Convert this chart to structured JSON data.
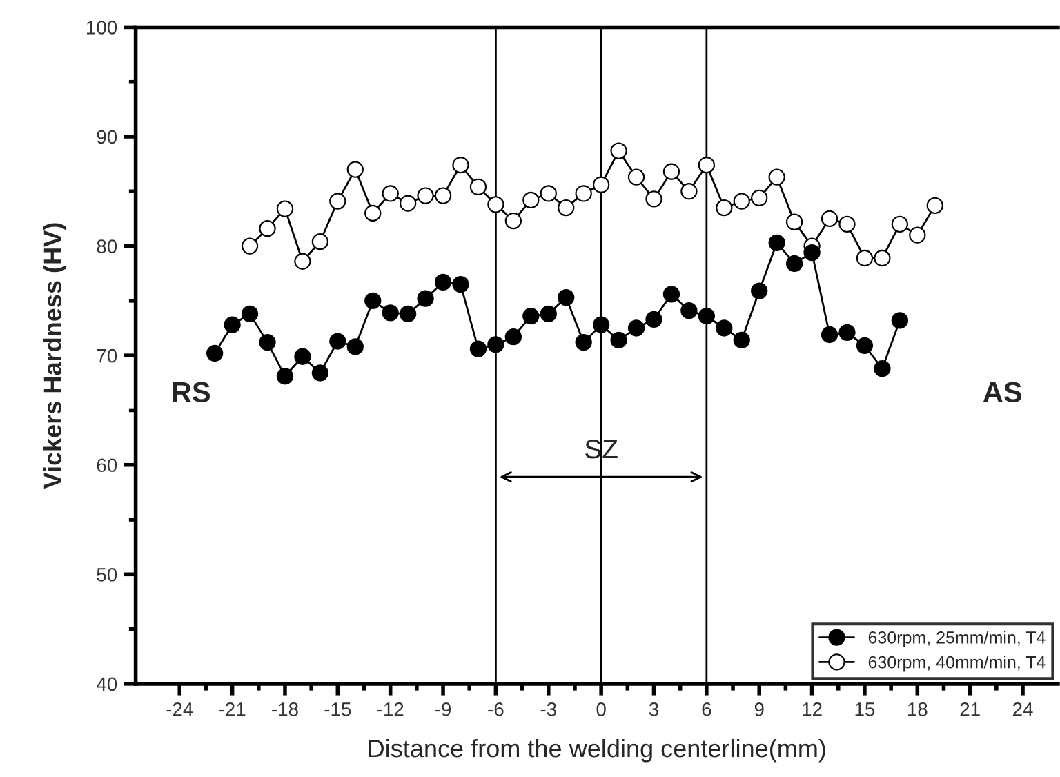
{
  "chart_data": {
    "type": "line",
    "xlabel": "Distance from the welding centerline(mm)",
    "ylabel": "Vickers Hardness (HV)",
    "xlim": [
      -26.5,
      26
    ],
    "ylim": [
      40,
      100
    ],
    "xticks": [
      -24,
      {
        "value": -22.5,
        "label": null
      },
      -21,
      {
        "value": -19.5,
        "label": null
      },
      -18,
      {
        "value": -16.5,
        "label": null
      },
      -15,
      {
        "value": -13.5,
        "label": null
      },
      -12,
      {
        "value": -10.5,
        "label": null
      },
      -9,
      {
        "value": -7.5,
        "label": null
      },
      -6,
      {
        "value": -4.5,
        "label": null
      },
      -3,
      {
        "value": -1.5,
        "label": null
      },
      0,
      {
        "value": 1.5,
        "label": null
      },
      3,
      {
        "value": 4.5,
        "label": null
      },
      6,
      {
        "value": 7.5,
        "label": null
      },
      9,
      {
        "value": 10.5,
        "label": null
      },
      12,
      {
        "value": 13.5,
        "label": null
      },
      15,
      {
        "value": 16.5,
        "label": null
      },
      18,
      {
        "value": 19.5,
        "label": null
      },
      21,
      {
        "value": 22.5,
        "label": null
      },
      24
    ],
    "yticks": [
      40,
      {
        "value": 45,
        "label": null
      },
      50,
      {
        "value": 55,
        "label": null
      },
      60,
      {
        "value": 65,
        "label": null
      },
      70,
      {
        "value": 75,
        "label": null
      },
      80,
      {
        "value": 85,
        "label": null
      },
      90,
      {
        "value": 95,
        "label": null
      },
      100
    ],
    "grid": false,
    "legend": "bottom right",
    "series": [
      {
        "name": "630rpm, 25mm/min, T4",
        "color": "#000000",
        "marker": "circle",
        "x": [
          -22,
          -21,
          -20,
          -19,
          -18,
          -17,
          -16,
          -15,
          -14,
          -13,
          -12,
          -11,
          -10,
          -9,
          -8,
          -7,
          -6,
          -5,
          -4,
          -3,
          -2,
          -1,
          0,
          1,
          2,
          3,
          4,
          5,
          6,
          7,
          8,
          9,
          10,
          11,
          12,
          13,
          14,
          15,
          16,
          17
        ],
        "values": [
          70.2,
          72.8,
          73.8,
          71.2,
          68.1,
          69.9,
          68.4,
          71.3,
          70.8,
          75.0,
          73.9,
          73.8,
          75.2,
          76.7,
          76.5,
          70.6,
          71.0,
          71.7,
          73.6,
          73.8,
          75.3,
          71.2,
          72.8,
          71.4,
          72.5,
          73.3,
          75.6,
          74.1,
          73.6,
          72.5,
          71.4,
          75.9,
          80.3,
          78.4,
          79.4,
          71.9,
          72.1,
          70.9,
          68.8,
          73.2
        ]
      },
      {
        "name": "630rpm, 40mm/min, T4",
        "color": "#ffffff",
        "marker": "circle",
        "x": [
          -20,
          -19,
          -18,
          -17,
          -16,
          -15,
          -14,
          -13,
          -12,
          -11,
          -10,
          -9,
          -8,
          -7,
          -6,
          -5,
          -4,
          -3,
          -2,
          -1,
          0,
          1,
          2,
          3,
          4,
          5,
          6,
          7,
          8,
          9,
          10,
          11,
          12,
          13,
          14,
          15,
          16,
          17,
          18,
          19
        ],
        "values": [
          80.0,
          81.6,
          83.4,
          78.6,
          80.4,
          84.1,
          87.0,
          83.0,
          84.8,
          83.9,
          84.6,
          84.6,
          87.4,
          85.4,
          83.8,
          82.3,
          84.2,
          84.8,
          83.5,
          84.8,
          85.6,
          88.7,
          86.3,
          84.3,
          86.8,
          85.0,
          87.4,
          83.5,
          84.1,
          84.4,
          86.3,
          82.2,
          80.0,
          82.5,
          82.0,
          78.9,
          78.9,
          82.0,
          81.0,
          83.7
        ]
      }
    ],
    "ref_lines": [
      {
        "axis": "x",
        "value": -6,
        "color": "#000000"
      },
      {
        "axis": "x",
        "value": 0,
        "color": "#000000"
      },
      {
        "axis": "x",
        "value": 6,
        "color": "#000000"
      }
    ],
    "annotations": [
      "RS",
      "AS",
      "SZ"
    ]
  }
}
